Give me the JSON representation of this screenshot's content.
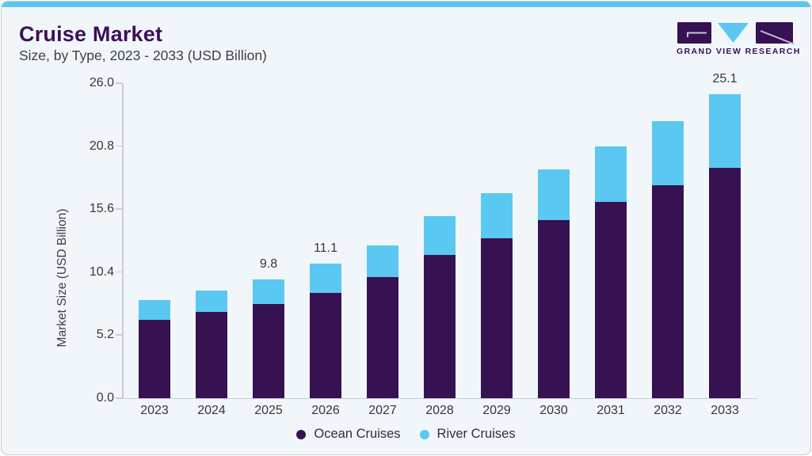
{
  "header": {
    "title": "Cruise Market",
    "subtitle": "Size, by Type, 2023 - 2033 (USD Billion)",
    "brand": "GRAND VIEW RESEARCH"
  },
  "colors": {
    "card_background": "#F1F6FA",
    "top_strip": "#5CC6F0",
    "title_purple": "#3C1058",
    "ocean_purple": "#371253",
    "river_blue": "#5BC8F2",
    "axis_gray": "#C9CED6",
    "tick_text": "#36363E"
  },
  "chart_data": {
    "type": "bar",
    "stacked": true,
    "title": "Cruise Market Size, by Type, 2023 - 2033 (USD Billion)",
    "xlabel": "",
    "ylabel": "Market Size (USD Billion)",
    "ylim": [
      0,
      26
    ],
    "yticks": [
      "0.0",
      "5.2",
      "10.4",
      "15.6",
      "20.8",
      "26.0"
    ],
    "grid": false,
    "legend_position": "bottom",
    "categories": [
      "2023",
      "2024",
      "2025",
      "2026",
      "2027",
      "2028",
      "2029",
      "2030",
      "2031",
      "2032",
      "2033"
    ],
    "series": [
      {
        "name": "Ocean Cruises",
        "color": "#371253",
        "values": [
          6.5,
          7.1,
          7.8,
          8.7,
          10.0,
          11.8,
          13.2,
          14.7,
          16.2,
          17.6,
          19.0
        ]
      },
      {
        "name": "River Cruises",
        "color": "#5BC8F2",
        "values": [
          1.6,
          1.8,
          2.0,
          2.4,
          2.6,
          3.2,
          3.7,
          4.2,
          4.6,
          5.3,
          6.1
        ]
      }
    ],
    "totals": [
      8.1,
      8.9,
      9.8,
      11.1,
      12.6,
      15.0,
      16.9,
      18.9,
      20.8,
      22.9,
      25.1
    ],
    "bar_labels": [
      "",
      "",
      "9.8",
      "11.1",
      "",
      "",
      "",
      "",
      "",
      "",
      "25.1"
    ]
  }
}
